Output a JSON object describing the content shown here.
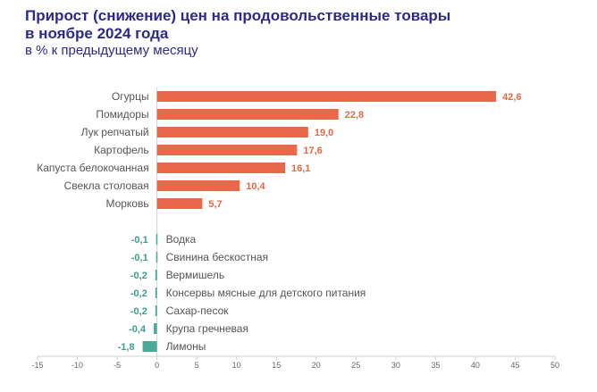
{
  "title_line1": "Прирост (снижение) цен на продовольственные товары",
  "title_line2": "в ноябре 2024 года",
  "subtitle": "в % к предыдущему месяцу",
  "colors": {
    "positive": "#e8694a",
    "negative": "#4aab98",
    "title": "#2b2a8c"
  },
  "chart_data": {
    "type": "bar",
    "orientation": "horizontal",
    "categories": [
      "Огурцы",
      "Помидоры",
      "Лук репчатый",
      "Картофель",
      "Капуста белокочанная",
      "Свекла столовая",
      "Морковь",
      "Водка",
      "Свинина бескостная",
      "Вермишель",
      "Консервы мясные для детского питания",
      "Сахар-песок",
      "Крупа гречневая",
      "Лимоны"
    ],
    "values": [
      42.6,
      22.8,
      19.0,
      17.6,
      16.1,
      10.4,
      5.7,
      -0.1,
      -0.1,
      -0.2,
      -0.2,
      -0.2,
      -0.4,
      -1.8
    ],
    "value_labels": [
      "42,6",
      "22,8",
      "19,0",
      "17,6",
      "16,1",
      "10,4",
      "5,7",
      "-0,1",
      "-0,1",
      "-0,2",
      "-0,2",
      "-0,2",
      "-0,4",
      "-1,8"
    ],
    "xlim": [
      -15,
      50
    ],
    "xticks": [
      -15,
      -10,
      -5,
      0,
      5,
      10,
      15,
      20,
      25,
      30,
      35,
      40,
      45,
      50
    ],
    "grid": false
  }
}
